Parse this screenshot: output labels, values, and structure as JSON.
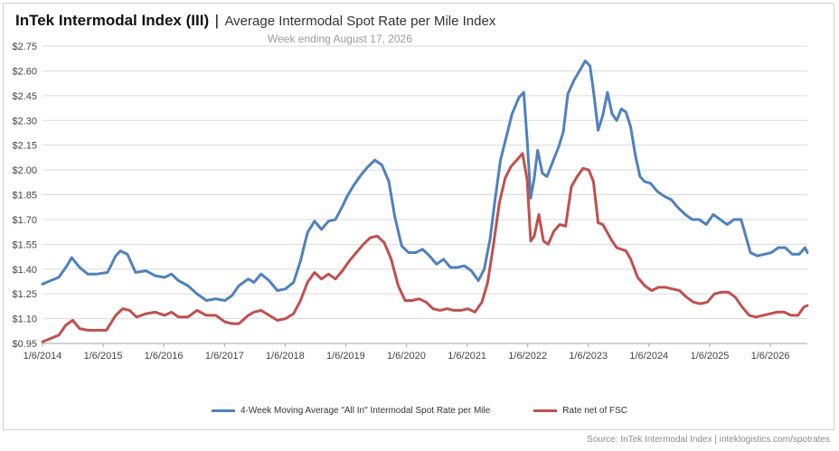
{
  "header": {
    "title": "InTek Intermodal Index (III)",
    "separator": "|",
    "subtitle": "Average Intermodal Spot Rate per Mile Index",
    "date_line": "Week ending August 17, 2026"
  },
  "source": "Source: InTek Intermodal Index | inteklogistics.com/spotrates",
  "colors": {
    "series_all_in": "#4f81bd",
    "series_net_fsc": "#c0504d",
    "grid": "#d9d9d9"
  },
  "chart_data": {
    "type": "line",
    "title": "InTek Intermodal Index (III) | Average Intermodal Spot Rate per Mile Index",
    "subtitle": "Week ending August 17, 2026",
    "xlabel": "",
    "ylabel": "",
    "y_ticks": [
      "$0.95",
      "$1.10",
      "$1.25",
      "$1.40",
      "$1.55",
      "$1.70",
      "$1.85",
      "$2.00",
      "$2.15",
      "$2.30",
      "$2.45",
      "$2.60",
      "$2.75"
    ],
    "ylim": [
      0.95,
      2.75
    ],
    "x_ticks": [
      "1/6/2014",
      "1/6/2015",
      "1/6/2016",
      "1/6/2017",
      "1/6/2018",
      "1/6/2019",
      "1/6/2020",
      "1/6/2021",
      "1/6/2022",
      "1/6/2023",
      "1/6/2024",
      "1/6/2025",
      "1/6/2026"
    ],
    "xlim": [
      "2014-01-06",
      "2026-08-17"
    ],
    "grid": "horizontal",
    "legend_position": "bottom",
    "series": [
      {
        "name": "4-Week Moving Average \"All In\" Intermodal Spot Rate per Mile",
        "color": "#4f81bd",
        "points": [
          [
            "2014-01-06",
            1.31
          ],
          [
            "2014-02-24",
            1.33
          ],
          [
            "2014-04-14",
            1.35
          ],
          [
            "2014-06-02",
            1.42
          ],
          [
            "2014-07-01",
            1.47
          ],
          [
            "2014-08-18",
            1.41
          ],
          [
            "2014-10-06",
            1.37
          ],
          [
            "2014-12-01",
            1.37
          ],
          [
            "2015-02-02",
            1.38
          ],
          [
            "2015-03-23",
            1.48
          ],
          [
            "2015-04-20",
            1.51
          ],
          [
            "2015-06-01",
            1.49
          ],
          [
            "2015-07-20",
            1.38
          ],
          [
            "2015-09-21",
            1.39
          ],
          [
            "2015-11-16",
            1.36
          ],
          [
            "2016-01-11",
            1.35
          ],
          [
            "2016-02-22",
            1.37
          ],
          [
            "2016-04-04",
            1.33
          ],
          [
            "2016-05-30",
            1.3
          ],
          [
            "2016-07-25",
            1.25
          ],
          [
            "2016-09-19",
            1.21
          ],
          [
            "2016-11-14",
            1.22
          ],
          [
            "2017-01-09",
            1.21
          ],
          [
            "2017-02-20",
            1.24
          ],
          [
            "2017-04-03",
            1.3
          ],
          [
            "2017-05-29",
            1.34
          ],
          [
            "2017-07-03",
            1.32
          ],
          [
            "2017-08-14",
            1.37
          ],
          [
            "2017-10-02",
            1.33
          ],
          [
            "2017-11-20",
            1.27
          ],
          [
            "2018-01-08",
            1.28
          ],
          [
            "2018-02-26",
            1.32
          ],
          [
            "2018-04-09",
            1.45
          ],
          [
            "2018-05-21",
            1.62
          ],
          [
            "2018-07-02",
            1.69
          ],
          [
            "2018-08-13",
            1.64
          ],
          [
            "2018-09-24",
            1.69
          ],
          [
            "2018-11-05",
            1.7
          ],
          [
            "2018-12-17",
            1.78
          ],
          [
            "2019-01-14",
            1.84
          ],
          [
            "2019-02-25",
            1.91
          ],
          [
            "2019-04-08",
            1.97
          ],
          [
            "2019-05-20",
            2.02
          ],
          [
            "2019-07-01",
            2.06
          ],
          [
            "2019-08-12",
            2.03
          ],
          [
            "2019-09-23",
            1.93
          ],
          [
            "2019-10-28",
            1.72
          ],
          [
            "2019-12-09",
            1.54
          ],
          [
            "2020-01-20",
            1.5
          ],
          [
            "2020-03-02",
            1.5
          ],
          [
            "2020-04-13",
            1.52
          ],
          [
            "2020-05-25",
            1.48
          ],
          [
            "2020-07-06",
            1.43
          ],
          [
            "2020-08-17",
            1.46
          ],
          [
            "2020-09-28",
            1.41
          ],
          [
            "2020-11-09",
            1.41
          ],
          [
            "2020-12-21",
            1.42
          ],
          [
            "2021-02-01",
            1.39
          ],
          [
            "2021-03-15",
            1.33
          ],
          [
            "2021-04-19",
            1.4
          ],
          [
            "2021-05-24",
            1.58
          ],
          [
            "2021-06-21",
            1.8
          ],
          [
            "2021-07-26",
            2.06
          ],
          [
            "2021-08-30",
            2.2
          ],
          [
            "2021-10-04",
            2.34
          ],
          [
            "2021-11-15",
            2.44
          ],
          [
            "2021-12-13",
            2.47
          ],
          [
            "2022-01-03",
            2.18
          ],
          [
            "2022-01-24",
            1.83
          ],
          [
            "2022-02-14",
            1.95
          ],
          [
            "2022-03-07",
            2.12
          ],
          [
            "2022-04-04",
            1.98
          ],
          [
            "2022-05-02",
            1.96
          ],
          [
            "2022-06-06",
            2.05
          ],
          [
            "2022-07-11",
            2.14
          ],
          [
            "2022-08-08",
            2.23
          ],
          [
            "2022-09-05",
            2.46
          ],
          [
            "2022-10-10",
            2.54
          ],
          [
            "2022-11-14",
            2.6
          ],
          [
            "2022-12-19",
            2.66
          ],
          [
            "2023-01-16",
            2.63
          ],
          [
            "2023-02-06",
            2.48
          ],
          [
            "2023-03-06",
            2.24
          ],
          [
            "2023-04-03",
            2.33
          ],
          [
            "2023-05-01",
            2.47
          ],
          [
            "2023-05-29",
            2.34
          ],
          [
            "2023-06-26",
            2.3
          ],
          [
            "2023-07-24",
            2.37
          ],
          [
            "2023-08-21",
            2.35
          ],
          [
            "2023-09-18",
            2.26
          ],
          [
            "2023-10-16",
            2.09
          ],
          [
            "2023-11-13",
            1.96
          ],
          [
            "2023-12-11",
            1.93
          ],
          [
            "2024-01-15",
            1.92
          ],
          [
            "2024-02-26",
            1.87
          ],
          [
            "2024-04-08",
            1.84
          ],
          [
            "2024-05-20",
            1.82
          ],
          [
            "2024-07-01",
            1.77
          ],
          [
            "2024-08-12",
            1.73
          ],
          [
            "2024-09-23",
            1.7
          ],
          [
            "2024-11-04",
            1.7
          ],
          [
            "2024-12-16",
            1.67
          ],
          [
            "2025-01-27",
            1.73
          ],
          [
            "2025-03-10",
            1.7
          ],
          [
            "2025-04-21",
            1.67
          ],
          [
            "2025-06-02",
            1.7
          ],
          [
            "2025-07-14",
            1.7
          ],
          [
            "2025-08-11",
            1.6
          ],
          [
            "2025-09-08",
            1.5
          ],
          [
            "2025-10-20",
            1.48
          ],
          [
            "2025-12-01",
            1.49
          ],
          [
            "2026-01-12",
            1.5
          ],
          [
            "2026-02-23",
            1.53
          ],
          [
            "2026-04-06",
            1.53
          ],
          [
            "2026-05-18",
            1.49
          ],
          [
            "2026-06-29",
            1.49
          ],
          [
            "2026-08-03",
            1.53
          ],
          [
            "2026-08-17",
            1.5
          ]
        ]
      },
      {
        "name": "Rate net of FSC",
        "color": "#c0504d",
        "points": [
          [
            "2014-01-06",
            0.96
          ],
          [
            "2014-02-24",
            0.98
          ],
          [
            "2014-04-14",
            1.0
          ],
          [
            "2014-05-26",
            1.06
          ],
          [
            "2014-07-07",
            1.09
          ],
          [
            "2014-08-18",
            1.04
          ],
          [
            "2014-10-06",
            1.03
          ],
          [
            "2014-12-01",
            1.03
          ],
          [
            "2015-01-26",
            1.03
          ],
          [
            "2015-03-23",
            1.12
          ],
          [
            "2015-05-04",
            1.16
          ],
          [
            "2015-06-15",
            1.15
          ],
          [
            "2015-07-27",
            1.11
          ],
          [
            "2015-09-21",
            1.13
          ],
          [
            "2015-11-16",
            1.14
          ],
          [
            "2016-01-11",
            1.12
          ],
          [
            "2016-02-22",
            1.14
          ],
          [
            "2016-04-04",
            1.11
          ],
          [
            "2016-05-30",
            1.11
          ],
          [
            "2016-07-25",
            1.15
          ],
          [
            "2016-09-19",
            1.12
          ],
          [
            "2016-11-14",
            1.12
          ],
          [
            "2017-01-09",
            1.08
          ],
          [
            "2017-02-20",
            1.07
          ],
          [
            "2017-04-03",
            1.07
          ],
          [
            "2017-05-29",
            1.12
          ],
          [
            "2017-07-03",
            1.14
          ],
          [
            "2017-08-14",
            1.15
          ],
          [
            "2017-10-02",
            1.12
          ],
          [
            "2017-11-20",
            1.09
          ],
          [
            "2018-01-08",
            1.1
          ],
          [
            "2018-02-26",
            1.13
          ],
          [
            "2018-04-09",
            1.21
          ],
          [
            "2018-05-21",
            1.32
          ],
          [
            "2018-07-02",
            1.38
          ],
          [
            "2018-08-13",
            1.34
          ],
          [
            "2018-09-24",
            1.37
          ],
          [
            "2018-11-05",
            1.34
          ],
          [
            "2018-12-17",
            1.39
          ],
          [
            "2019-01-28",
            1.45
          ],
          [
            "2019-03-11",
            1.5
          ],
          [
            "2019-04-22",
            1.55
          ],
          [
            "2019-06-03",
            1.59
          ],
          [
            "2019-07-15",
            1.6
          ],
          [
            "2019-08-26",
            1.56
          ],
          [
            "2019-10-07",
            1.46
          ],
          [
            "2019-11-18",
            1.3
          ],
          [
            "2019-12-30",
            1.21
          ],
          [
            "2020-02-10",
            1.21
          ],
          [
            "2020-03-23",
            1.22
          ],
          [
            "2020-05-04",
            1.2
          ],
          [
            "2020-06-15",
            1.16
          ],
          [
            "2020-07-27",
            1.15
          ],
          [
            "2020-09-07",
            1.16
          ],
          [
            "2020-10-19",
            1.15
          ],
          [
            "2020-11-30",
            1.15
          ],
          [
            "2021-01-11",
            1.16
          ],
          [
            "2021-02-22",
            1.14
          ],
          [
            "2021-04-05",
            1.2
          ],
          [
            "2021-05-10",
            1.32
          ],
          [
            "2021-06-14",
            1.55
          ],
          [
            "2021-07-19",
            1.8
          ],
          [
            "2021-08-23",
            1.95
          ],
          [
            "2021-09-27",
            2.02
          ],
          [
            "2021-11-01",
            2.06
          ],
          [
            "2021-12-06",
            2.1
          ],
          [
            "2022-01-03",
            1.94
          ],
          [
            "2022-01-24",
            1.57
          ],
          [
            "2022-02-14",
            1.6
          ],
          [
            "2022-03-14",
            1.73
          ],
          [
            "2022-04-11",
            1.57
          ],
          [
            "2022-05-09",
            1.55
          ],
          [
            "2022-06-13",
            1.63
          ],
          [
            "2022-07-18",
            1.67
          ],
          [
            "2022-08-22",
            1.66
          ],
          [
            "2022-09-26",
            1.9
          ],
          [
            "2022-10-31",
            1.96
          ],
          [
            "2022-12-05",
            2.01
          ],
          [
            "2023-01-09",
            2.0
          ],
          [
            "2023-02-06",
            1.93
          ],
          [
            "2023-03-06",
            1.68
          ],
          [
            "2023-04-03",
            1.67
          ],
          [
            "2023-05-01",
            1.62
          ],
          [
            "2023-05-29",
            1.57
          ],
          [
            "2023-06-26",
            1.53
          ],
          [
            "2023-07-24",
            1.52
          ],
          [
            "2023-08-21",
            1.51
          ],
          [
            "2023-09-18",
            1.46
          ],
          [
            "2023-10-30",
            1.35
          ],
          [
            "2023-12-11",
            1.3
          ],
          [
            "2024-01-22",
            1.27
          ],
          [
            "2024-03-04",
            1.29
          ],
          [
            "2024-04-15",
            1.29
          ],
          [
            "2024-05-27",
            1.28
          ],
          [
            "2024-07-08",
            1.27
          ],
          [
            "2024-08-19",
            1.23
          ],
          [
            "2024-09-30",
            1.2
          ],
          [
            "2024-11-11",
            1.19
          ],
          [
            "2024-12-23",
            1.2
          ],
          [
            "2025-02-03",
            1.25
          ],
          [
            "2025-03-17",
            1.26
          ],
          [
            "2025-04-28",
            1.26
          ],
          [
            "2025-06-09",
            1.23
          ],
          [
            "2025-07-21",
            1.17
          ],
          [
            "2025-09-01",
            1.12
          ],
          [
            "2025-10-13",
            1.11
          ],
          [
            "2025-11-24",
            1.12
          ],
          [
            "2026-01-05",
            1.13
          ],
          [
            "2026-02-16",
            1.14
          ],
          [
            "2026-03-30",
            1.14
          ],
          [
            "2026-05-11",
            1.12
          ],
          [
            "2026-06-22",
            1.12
          ],
          [
            "2026-07-27",
            1.17
          ],
          [
            "2026-08-17",
            1.18
          ]
        ]
      }
    ]
  }
}
